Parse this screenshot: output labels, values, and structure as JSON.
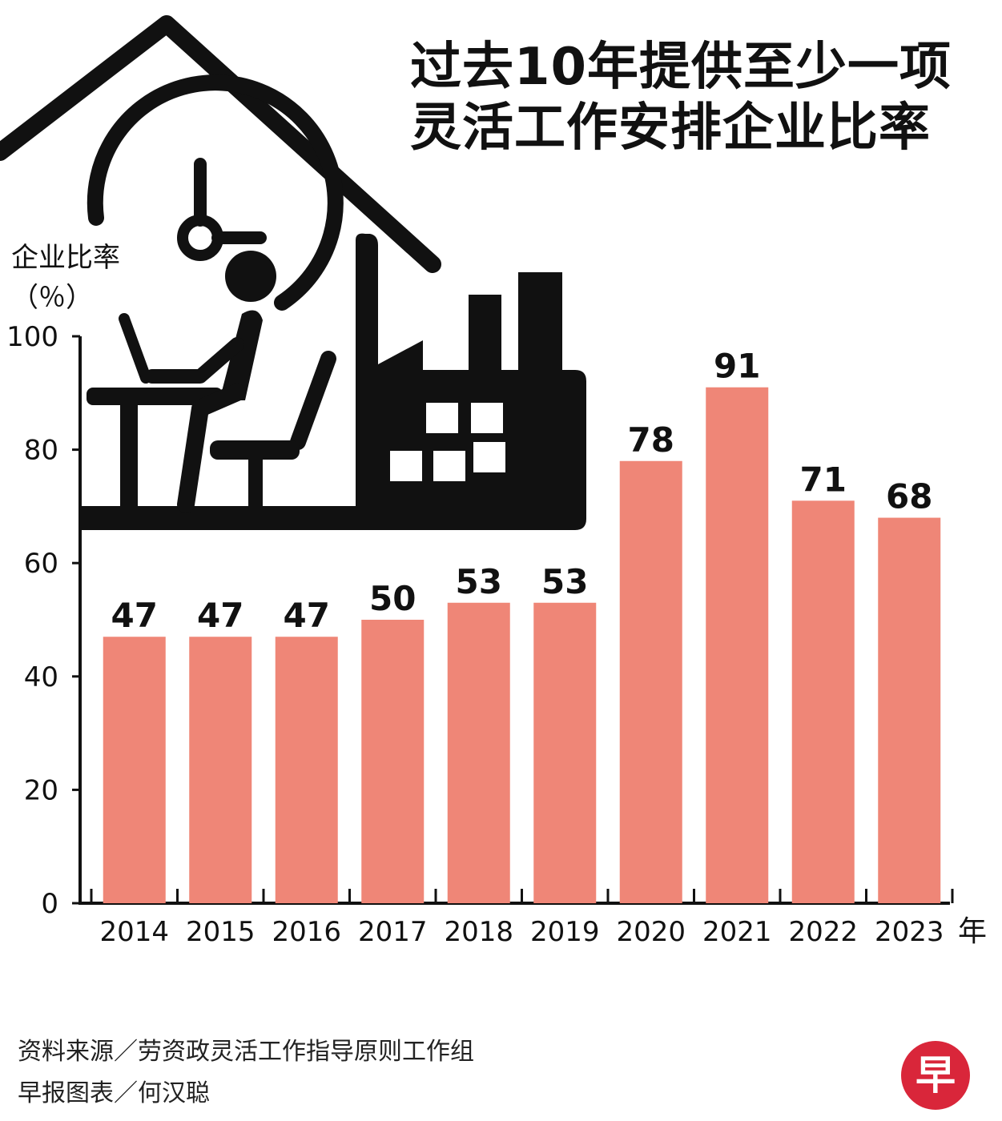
{
  "title_lines": [
    "过去10年提供至少一项",
    "灵活工作安排企业比率"
  ],
  "chart_data": {
    "type": "bar",
    "title": "过去10年提供至少一项灵活工作安排企业比率",
    "ylabel": "企业比率",
    "yunit": "（％）",
    "xunit": "年",
    "categories": [
      "2014",
      "2015",
      "2016",
      "2017",
      "2018",
      "2019",
      "2020",
      "2021",
      "2022",
      "2023"
    ],
    "values": [
      47,
      47,
      47,
      50,
      53,
      53,
      78,
      91,
      71,
      68
    ],
    "ylim": [
      0,
      100
    ],
    "yticks": [
      0,
      20,
      40,
      60,
      80,
      100
    ],
    "bar_color": "#ef8677",
    "grid": false
  },
  "footer": {
    "source": "资料来源／劳资政灵活工作指导原则工作组",
    "credit": "早报图表／何汉聪",
    "logo_text": "早"
  }
}
